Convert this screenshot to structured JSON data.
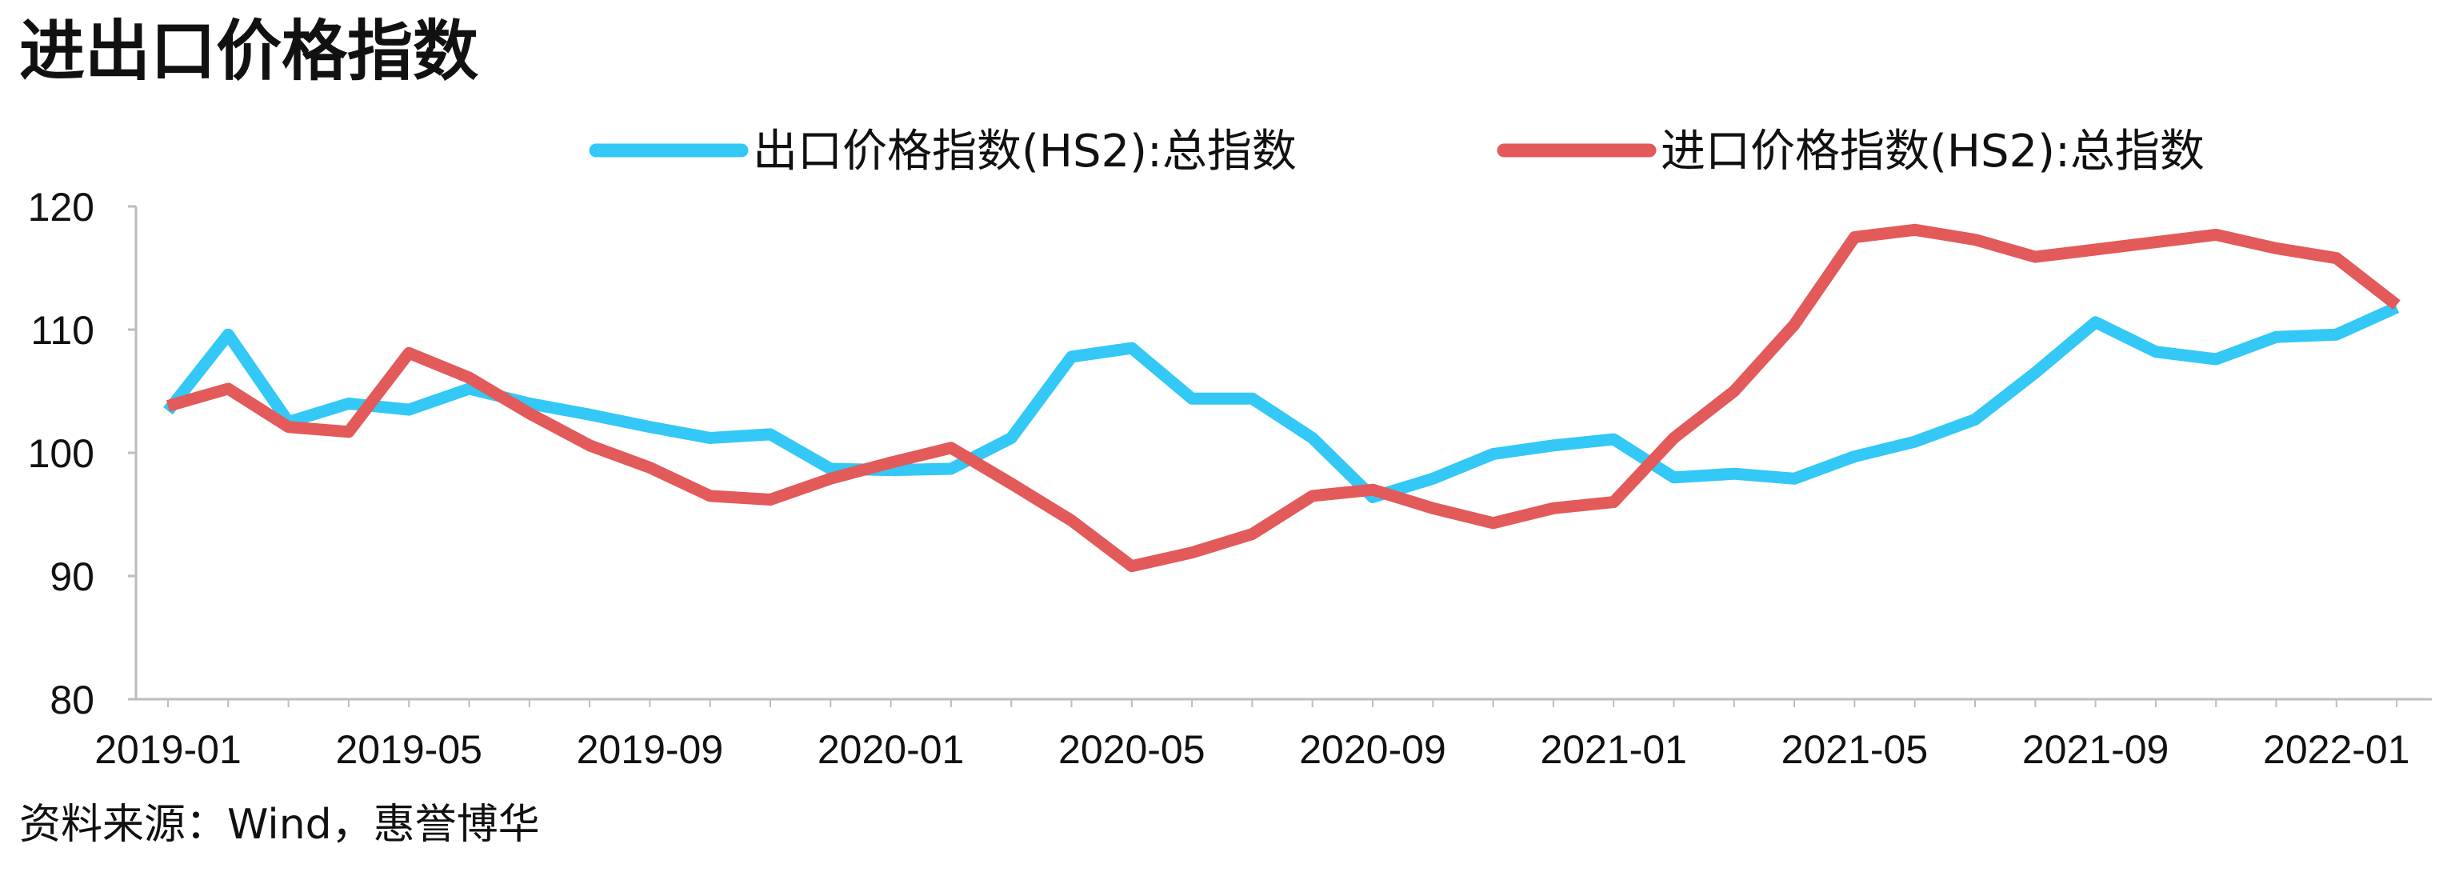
{
  "chart_data": {
    "type": "line",
    "title": "进出口价格指数",
    "xlabel": "",
    "ylabel": "",
    "x": [
      "2019-01",
      "2019-02",
      "2019-03",
      "2019-04",
      "2019-05",
      "2019-06",
      "2019-07",
      "2019-08",
      "2019-09",
      "2019-10",
      "2019-11",
      "2019-12",
      "2020-01",
      "2020-02",
      "2020-03",
      "2020-04",
      "2020-05",
      "2020-06",
      "2020-07",
      "2020-08",
      "2020-09",
      "2020-10",
      "2020-11",
      "2020-12",
      "2021-01",
      "2021-02",
      "2021-03",
      "2021-04",
      "2021-05",
      "2021-06",
      "2021-07",
      "2021-08",
      "2021-09",
      "2021-10",
      "2021-11",
      "2021-12",
      "2022-01",
      "2022-02"
    ],
    "x_tick_labels": [
      "2019-01",
      "2019-05",
      "2019-09",
      "2020-01",
      "2020-05",
      "2020-09",
      "2021-01",
      "2021-05",
      "2021-09",
      "2022-01"
    ],
    "ylim": [
      80,
      120
    ],
    "y_ticks": [
      80,
      90,
      100,
      110,
      120
    ],
    "grid": false,
    "legend_position": "top",
    "series": [
      {
        "name": "出口价格指数(HS2):总指数",
        "color": "#33C8F5",
        "values": [
          103.4,
          109.6,
          102.5,
          104.0,
          103.5,
          105.2,
          104.0,
          103.1,
          102.1,
          101.2,
          101.5,
          98.7,
          98.6,
          98.7,
          101.2,
          107.8,
          108.5,
          104.4,
          104.4,
          101.2,
          96.4,
          97.9,
          99.9,
          100.6,
          101.1,
          98.0,
          98.3,
          97.9,
          99.7,
          100.9,
          102.7,
          106.5,
          110.6,
          108.2,
          107.6,
          109.4,
          109.6,
          111.8
        ]
      },
      {
        "name": "进口价格指数(HS2):总指数",
        "color": "#E35A5A",
        "values": [
          103.8,
          105.2,
          102.1,
          101.7,
          108.1,
          106.1,
          103.2,
          100.6,
          98.8,
          96.5,
          96.2,
          97.9,
          99.2,
          100.4,
          97.5,
          94.5,
          90.8,
          91.9,
          93.4,
          96.5,
          97.0,
          95.5,
          94.3,
          95.5,
          96.0,
          101.2,
          105.0,
          110.4,
          117.5,
          118.1,
          117.3,
          115.9,
          116.5,
          117.1,
          117.7,
          116.6,
          115.8,
          112.0
        ]
      }
    ]
  },
  "source_note": "资料来源：Wind，惠誉博华"
}
